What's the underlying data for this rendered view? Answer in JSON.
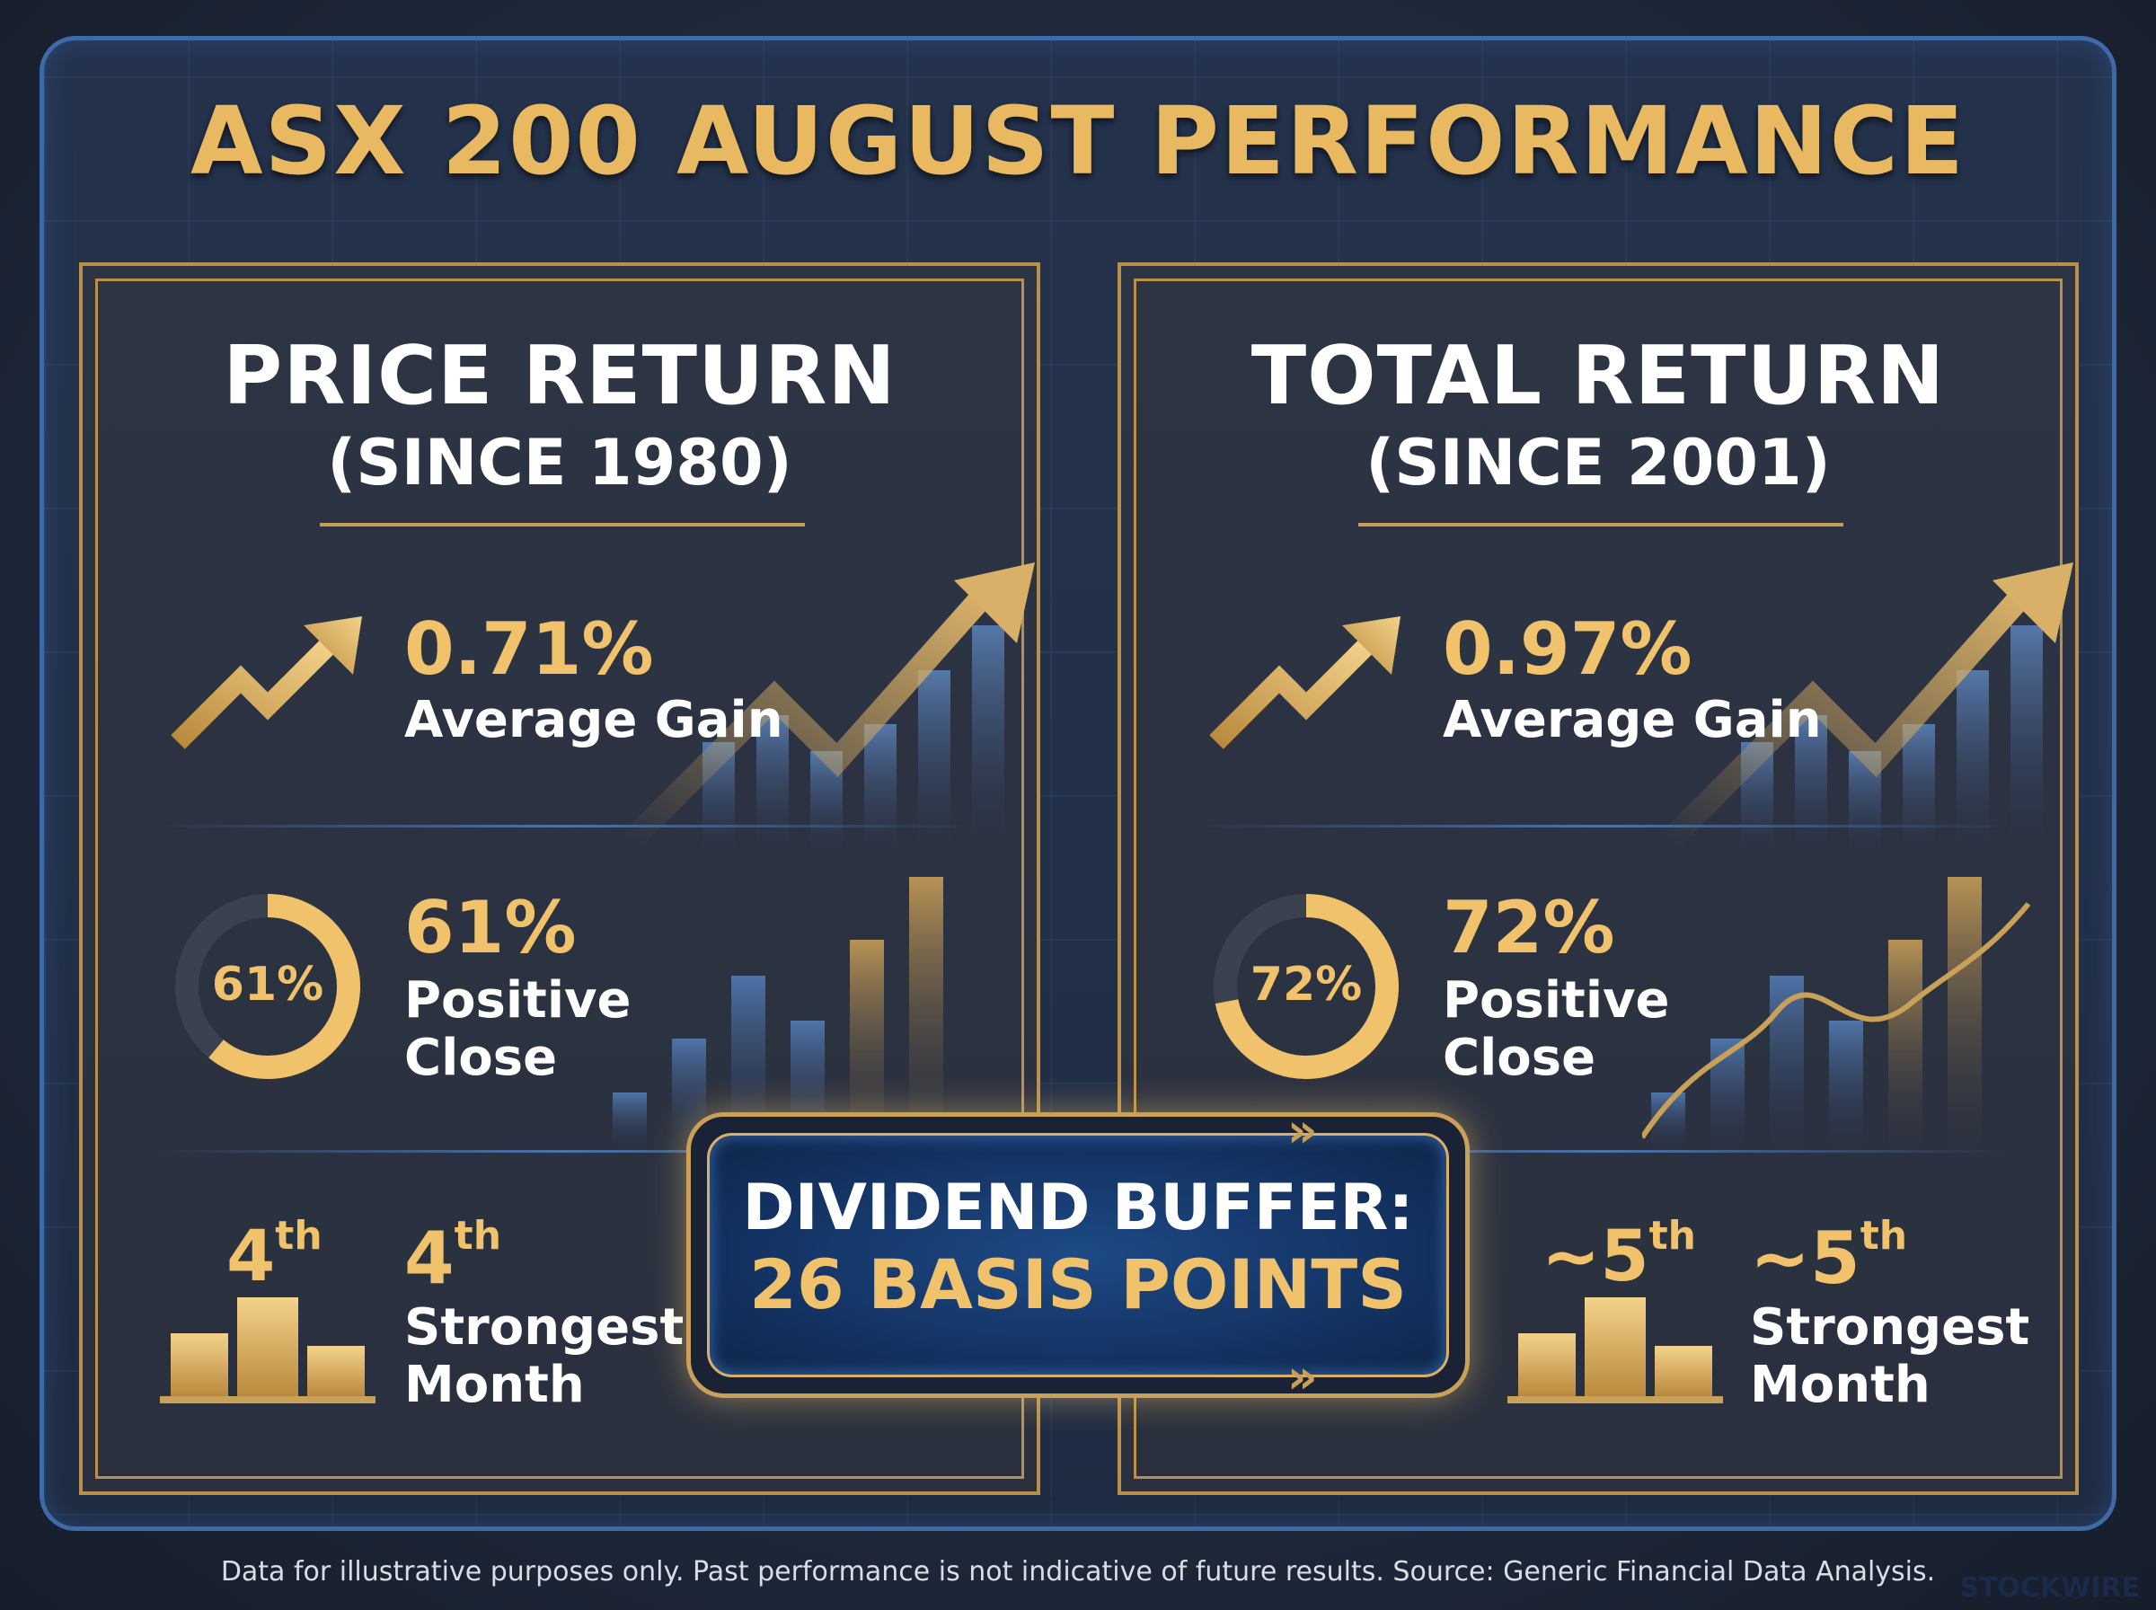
{
  "title": "ASX 200 AUGUST PERFORMANCE",
  "panels": [
    {
      "heading": "PRICE RETURN",
      "subheading": "(SINCE 1980)",
      "avg_gain": {
        "value": "0.71%",
        "label": "Average Gain"
      },
      "positive_close": {
        "ring_value": "61%",
        "value": "61%",
        "label_1": "Positive",
        "label_2": "Close",
        "fraction": 0.61
      },
      "rank": {
        "badge_num": "4",
        "badge_suffix": "th",
        "num": "4",
        "suffix": "th",
        "label_1": "Strongest",
        "label_2": "Month"
      }
    },
    {
      "heading": "TOTAL RETURN",
      "subheading": "(SINCE 2001)",
      "avg_gain": {
        "value": "0.97%",
        "label": "Average Gain"
      },
      "positive_close": {
        "ring_value": "72%",
        "value": "72%",
        "label_1": "Positive",
        "label_2": "Close",
        "fraction": 0.72
      },
      "rank": {
        "badge_num": "~5",
        "badge_suffix": "th",
        "num": "~5",
        "suffix": "th",
        "label_1": "Strongest",
        "label_2": "Month"
      }
    }
  ],
  "buffer": {
    "line1": "DIVIDEND BUFFER:",
    "line2": "26 BASIS POINTS"
  },
  "footer": "Data for illustrative purposes only. Past performance is not indicative of future results. Source: Generic Financial Data Analysis.",
  "brand": "STOCKWIRE",
  "colors": {
    "gold": "#f0c26c",
    "ring_track": "#3a4150",
    "blue_bar": "#4a6b9a"
  },
  "icons": [
    "trend-up-arrow-icon",
    "progress-ring-icon",
    "podium-icon",
    "chevron-right-icon"
  ]
}
